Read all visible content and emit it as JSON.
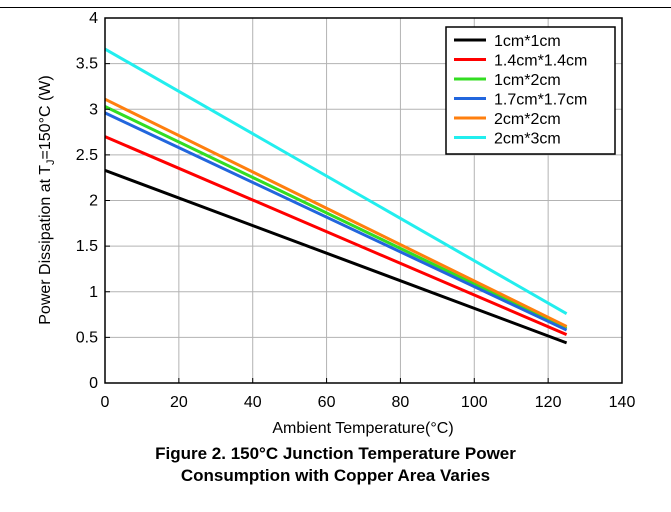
{
  "chart_data": {
    "type": "line",
    "title": "",
    "xlabel": "Ambient Temperature(°C)",
    "ylabel": {
      "pre": "Power Dissipation at T",
      "sub": "J",
      "post": "=150°C (W)"
    },
    "xlim": [
      0,
      140
    ],
    "ylim": [
      0,
      4
    ],
    "xticks": [
      "0",
      "20",
      "40",
      "60",
      "80",
      "100",
      "120",
      "140"
    ],
    "yticks": [
      "0",
      "0.5",
      "1",
      "1.5",
      "2",
      "2.5",
      "3",
      "3.5",
      "4"
    ],
    "grid": true,
    "legend_position": "top-right",
    "series": [
      {
        "name": "1cm*1cm",
        "color": "#000000",
        "x": [
          0,
          125
        ],
        "y": [
          2.33,
          0.44
        ]
      },
      {
        "name": "1.4cm*1.4cm",
        "color": "#ff0000",
        "x": [
          0,
          125
        ],
        "y": [
          2.7,
          0.53
        ]
      },
      {
        "name": "1cm*2cm",
        "color": "#33dd22",
        "x": [
          0,
          125
        ],
        "y": [
          3.03,
          0.6
        ]
      },
      {
        "name": "1.7cm*1.7cm",
        "color": "#2266dd",
        "x": [
          0,
          125
        ],
        "y": [
          2.96,
          0.58
        ]
      },
      {
        "name": "2cm*2cm",
        "color": "#ff7f0e",
        "x": [
          0,
          125
        ],
        "y": [
          3.11,
          0.62
        ]
      },
      {
        "name": "2cm*3cm",
        "color": "#22eeee",
        "x": [
          0,
          125
        ],
        "y": [
          3.66,
          0.76
        ]
      }
    ]
  },
  "caption": {
    "line1": "Figure 2. 150°C Junction Temperature Power",
    "line2": "Consumption with Copper Area Varies"
  }
}
